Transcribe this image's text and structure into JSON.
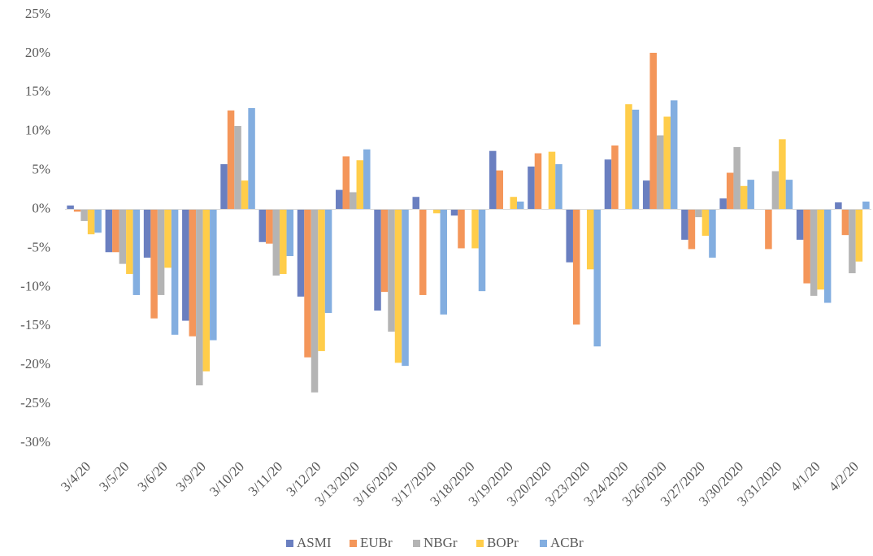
{
  "chart_data": {
    "type": "bar",
    "categories": [
      "3/4/20",
      "3/5/20",
      "3/6/20",
      "3/9/20",
      "3/10/20",
      "3/11/20",
      "3/12/20",
      "3/13/2020",
      "3/16/2020",
      "3/17/2020",
      "3/18/2020",
      "3/19/2020",
      "3/20/2020",
      "3/23/2020",
      "3/24/2020",
      "3/26/2020",
      "3/27/2020",
      "3/30/2020",
      "3/31/2020",
      "4/1/20",
      "4/2/20"
    ],
    "series": [
      {
        "name": "ASMI",
        "color": "#6a7fc0",
        "values": [
          0.5,
          -5.5,
          -6.2,
          -14.3,
          5.8,
          -4.2,
          -11.2,
          2.5,
          -13,
          1.6,
          -0.8,
          7.5,
          5.5,
          -6.8,
          6.4,
          3.7,
          -3.9,
          1.4,
          0,
          -3.9,
          0.9
        ]
      },
      {
        "name": "EUBr",
        "color": "#f4965a",
        "values": [
          -0.3,
          -5.5,
          -14,
          -16.3,
          12.7,
          -4.4,
          -19,
          6.8,
          -10.6,
          -11,
          -5,
          5,
          7.2,
          -14.8,
          8.2,
          20.1,
          -5.1,
          4.7,
          -5.1,
          -9.5,
          -3.3
        ]
      },
      {
        "name": "NBGr",
        "color": "#b4b4b4",
        "values": [
          -1.5,
          -7,
          -11,
          -22.6,
          10.7,
          -8.5,
          -23.5,
          2.2,
          -15.7,
          0,
          0,
          0,
          0,
          0,
          0,
          9.5,
          -1,
          8,
          4.9,
          -11.1,
          -8.2
        ]
      },
      {
        "name": "BOPr",
        "color": "#ffcd4a",
        "values": [
          -3.2,
          -8.3,
          -7.5,
          -20.8,
          3.7,
          -8.3,
          -18.2,
          6.3,
          -19.7,
          -0.5,
          -5,
          1.6,
          7.4,
          -7.7,
          13.5,
          11.9,
          -3.4,
          3,
          9,
          -10.3,
          -6.7
        ]
      },
      {
        "name": "ACBr",
        "color": "#83aee0",
        "values": [
          -3,
          -11,
          -16.1,
          -16.8,
          13,
          -6,
          -13.3,
          7.7,
          -20.1,
          -13.5,
          -10.5,
          1,
          5.8,
          -17.6,
          12.8,
          14,
          -6.2,
          3.8,
          3.8,
          -12,
          1
        ]
      }
    ],
    "ylim": [
      -30,
      25
    ],
    "yticks": [
      {
        "value": -30,
        "label": "-30%"
      },
      {
        "value": -25,
        "label": "-25%"
      },
      {
        "value": -20,
        "label": "-20%"
      },
      {
        "value": -15,
        "label": "-15%"
      },
      {
        "value": -10,
        "label": "-10%"
      },
      {
        "value": -5,
        "label": "-5%"
      },
      {
        "value": 0,
        "label": "0%"
      },
      {
        "value": 5,
        "label": "5%"
      },
      {
        "value": 10,
        "label": "10%"
      },
      {
        "value": 15,
        "label": "15%"
      },
      {
        "value": 20,
        "label": "20%"
      },
      {
        "value": 25,
        "label": "25%"
      }
    ],
    "grid": false,
    "legend": "bottom"
  }
}
